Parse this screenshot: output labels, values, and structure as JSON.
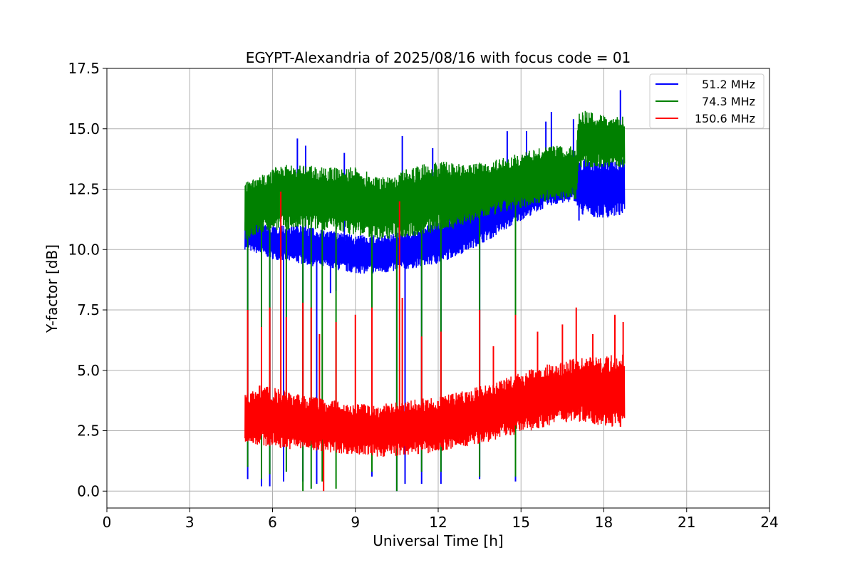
{
  "chart_data": {
    "type": "line",
    "title": "EGYPT-Alexandria of 2025/08/16 with focus code = 01",
    "xlabel": "Universal Time [h]",
    "ylabel": "Y-factor [dB]",
    "xlim": [
      0,
      24
    ],
    "ylim": [
      -0.7,
      17.5
    ],
    "xticks": [
      0,
      3,
      6,
      9,
      12,
      15,
      18,
      21,
      24
    ],
    "xtick_labels": [
      "0",
      "3",
      "6",
      "9",
      "12",
      "15",
      "18",
      "21",
      "24"
    ],
    "yticks": [
      0.0,
      2.5,
      5.0,
      7.5,
      10.0,
      12.5,
      15.0,
      17.5
    ],
    "ytick_labels": [
      "0.0",
      "2.5",
      "5.0",
      "7.5",
      "10.0",
      "12.5",
      "15.0",
      "17.5"
    ],
    "grid": true,
    "legend_position": "top-right",
    "series": [
      {
        "name": "51.2 MHz",
        "color": "#0000ff",
        "x": [
          5.0,
          5.5,
          6.0,
          7.0,
          8.0,
          9.0,
          10.0,
          11.0,
          12.0,
          13.0,
          14.0,
          15.0,
          16.0,
          17.0,
          17.1,
          18.0,
          18.75
        ],
        "low": [
          10.0,
          9.8,
          9.6,
          9.4,
          9.2,
          9.0,
          9.0,
          9.2,
          9.4,
          9.9,
          10.5,
          11.2,
          11.8,
          12.0,
          11.4,
          11.3,
          11.4
        ],
        "high": [
          11.5,
          11.2,
          11.0,
          11.0,
          10.8,
          10.6,
          10.6,
          10.8,
          11.2,
          11.8,
          12.4,
          12.8,
          13.2,
          13.4,
          13.8,
          13.8,
          13.8
        ],
        "spikes": [
          {
            "x": 6.9,
            "y": 14.6
          },
          {
            "x": 7.2,
            "y": 14.3
          },
          {
            "x": 8.6,
            "y": 14.0
          },
          {
            "x": 10.7,
            "y": 14.7
          },
          {
            "x": 11.8,
            "y": 14.2
          },
          {
            "x": 14.5,
            "y": 14.9
          },
          {
            "x": 15.2,
            "y": 14.9
          },
          {
            "x": 15.9,
            "y": 15.3
          },
          {
            "x": 16.1,
            "y": 15.7
          },
          {
            "x": 16.9,
            "y": 15.4
          },
          {
            "x": 18.6,
            "y": 16.6
          }
        ],
        "dips": [
          {
            "x": 5.1,
            "y": 0.5
          },
          {
            "x": 5.6,
            "y": 0.2
          },
          {
            "x": 5.9,
            "y": 0.2
          },
          {
            "x": 6.4,
            "y": 0.4
          },
          {
            "x": 7.1,
            "y": 0.4
          },
          {
            "x": 7.6,
            "y": 0.3
          },
          {
            "x": 8.1,
            "y": 8.2
          },
          {
            "x": 8.3,
            "y": 8.3
          },
          {
            "x": 9.6,
            "y": 0.6
          },
          {
            "x": 10.5,
            "y": 0.0
          },
          {
            "x": 10.8,
            "y": 0.3
          },
          {
            "x": 11.4,
            "y": 0.3
          },
          {
            "x": 12.1,
            "y": 0.3
          },
          {
            "x": 13.5,
            "y": 0.5
          },
          {
            "x": 14.8,
            "y": 0.4
          },
          {
            "x": 17.1,
            "y": 11.2
          }
        ]
      },
      {
        "name": "74.3 MHz",
        "color": "#008000",
        "x": [
          5.0,
          5.5,
          6.0,
          7.0,
          8.0,
          9.0,
          10.0,
          11.0,
          12.0,
          13.0,
          14.0,
          15.0,
          16.0,
          17.0,
          17.1,
          18.0,
          18.75
        ],
        "low": [
          10.4,
          10.6,
          10.8,
          10.8,
          10.8,
          10.6,
          10.4,
          10.5,
          10.7,
          11.0,
          11.4,
          11.7,
          12.0,
          12.1,
          13.4,
          13.4,
          13.4
        ],
        "high": [
          12.8,
          13.0,
          13.4,
          13.6,
          13.4,
          13.4,
          13.0,
          13.4,
          13.7,
          13.5,
          13.7,
          14.0,
          14.3,
          14.3,
          15.8,
          15.6,
          15.5
        ],
        "spikes": [],
        "dips": [
          {
            "x": 5.1,
            "y": 1.0
          },
          {
            "x": 5.6,
            "y": 0.5
          },
          {
            "x": 5.9,
            "y": 0.7
          },
          {
            "x": 6.5,
            "y": 0.8
          },
          {
            "x": 7.1,
            "y": 0.0
          },
          {
            "x": 7.4,
            "y": 0.1
          },
          {
            "x": 7.8,
            "y": 0.4
          },
          {
            "x": 8.3,
            "y": 0.1
          },
          {
            "x": 9.6,
            "y": 0.8
          },
          {
            "x": 10.5,
            "y": 0.0
          },
          {
            "x": 11.4,
            "y": 0.8
          },
          {
            "x": 12.1,
            "y": 0.8
          },
          {
            "x": 13.5,
            "y": 0.6
          },
          {
            "x": 14.8,
            "y": 0.6
          }
        ]
      },
      {
        "name": "150.6 MHz",
        "color": "#ff0000",
        "x": [
          5.0,
          5.5,
          6.0,
          7.0,
          8.0,
          9.0,
          10.0,
          11.0,
          12.0,
          13.0,
          14.0,
          15.0,
          16.0,
          17.0,
          18.0,
          18.75
        ],
        "low": [
          2.0,
          1.9,
          1.8,
          1.7,
          1.6,
          1.5,
          1.4,
          1.5,
          1.6,
          1.8,
          2.1,
          2.4,
          2.7,
          2.9,
          2.7,
          2.6
        ],
        "high": [
          4.0,
          4.4,
          4.3,
          4.0,
          3.8,
          3.6,
          3.6,
          3.8,
          3.9,
          4.2,
          4.5,
          4.9,
          5.3,
          5.5,
          5.6,
          5.7
        ],
        "spikes": [
          {
            "x": 5.1,
            "y": 7.5
          },
          {
            "x": 5.6,
            "y": 6.8
          },
          {
            "x": 5.9,
            "y": 7.6
          },
          {
            "x": 6.3,
            "y": 12.4
          },
          {
            "x": 6.5,
            "y": 7.2
          },
          {
            "x": 7.1,
            "y": 7.8
          },
          {
            "x": 7.4,
            "y": 7.6
          },
          {
            "x": 7.7,
            "y": 6.5
          },
          {
            "x": 8.3,
            "y": 7.0
          },
          {
            "x": 9.0,
            "y": 7.3
          },
          {
            "x": 9.6,
            "y": 7.6
          },
          {
            "x": 10.6,
            "y": 12.0
          },
          {
            "x": 10.7,
            "y": 8.0
          },
          {
            "x": 11.4,
            "y": 6.4
          },
          {
            "x": 12.1,
            "y": 6.6
          },
          {
            "x": 13.5,
            "y": 7.5
          },
          {
            "x": 14.0,
            "y": 6.0
          },
          {
            "x": 14.8,
            "y": 7.3
          },
          {
            "x": 15.6,
            "y": 6.6
          },
          {
            "x": 16.5,
            "y": 6.9
          },
          {
            "x": 17.0,
            "y": 7.6
          },
          {
            "x": 17.6,
            "y": 6.5
          },
          {
            "x": 18.4,
            "y": 7.3
          },
          {
            "x": 18.7,
            "y": 7.0
          }
        ],
        "dips": [
          {
            "x": 7.85,
            "y": 0.0
          }
        ]
      }
    ]
  }
}
